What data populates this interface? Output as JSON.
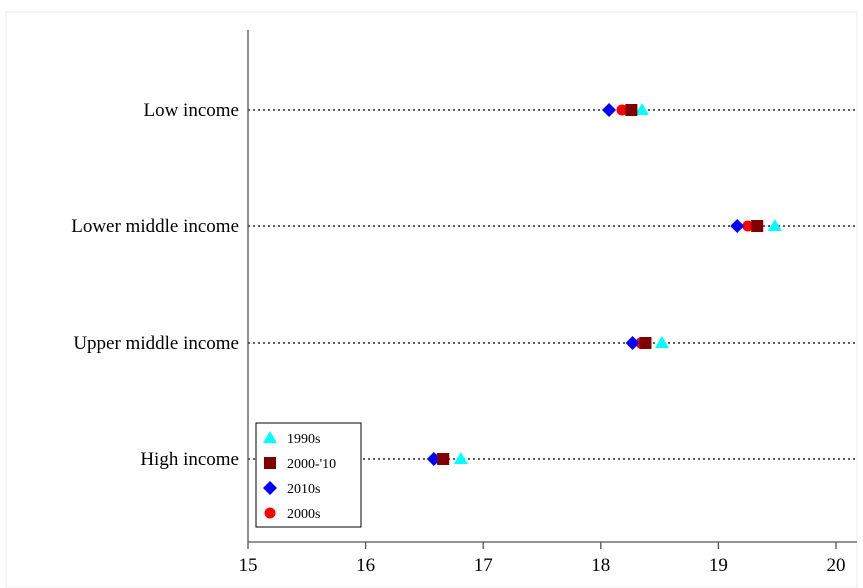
{
  "chart_data": {
    "type": "scatter",
    "title": "",
    "xlabel": "",
    "ylabel": "",
    "xlim": [
      15,
      20
    ],
    "x_ticks": [
      "15",
      "16",
      "17",
      "18",
      "19",
      "20"
    ],
    "categories": [
      "Low income",
      "Lower middle income",
      "Upper middle income",
      "High income"
    ],
    "grid": "dotted horizontal lines at each category",
    "legend_position": "bottom-left",
    "series": [
      {
        "name": "1990s",
        "marker": "triangle",
        "color": "#00ffff",
        "values": [
          18.35,
          19.48,
          18.52,
          16.81
        ]
      },
      {
        "name": "2000-'10",
        "marker": "square",
        "color": "#800000",
        "values": [
          18.26,
          19.33,
          18.38,
          16.66
        ]
      },
      {
        "name": "2010s",
        "marker": "diamond",
        "color": "#0000ff",
        "values": [
          18.07,
          19.16,
          18.27,
          16.58
        ]
      },
      {
        "name": "2000s",
        "marker": "circle",
        "color": "#ff0000",
        "values": [
          18.18,
          19.25,
          18.34,
          16.63
        ]
      }
    ]
  }
}
